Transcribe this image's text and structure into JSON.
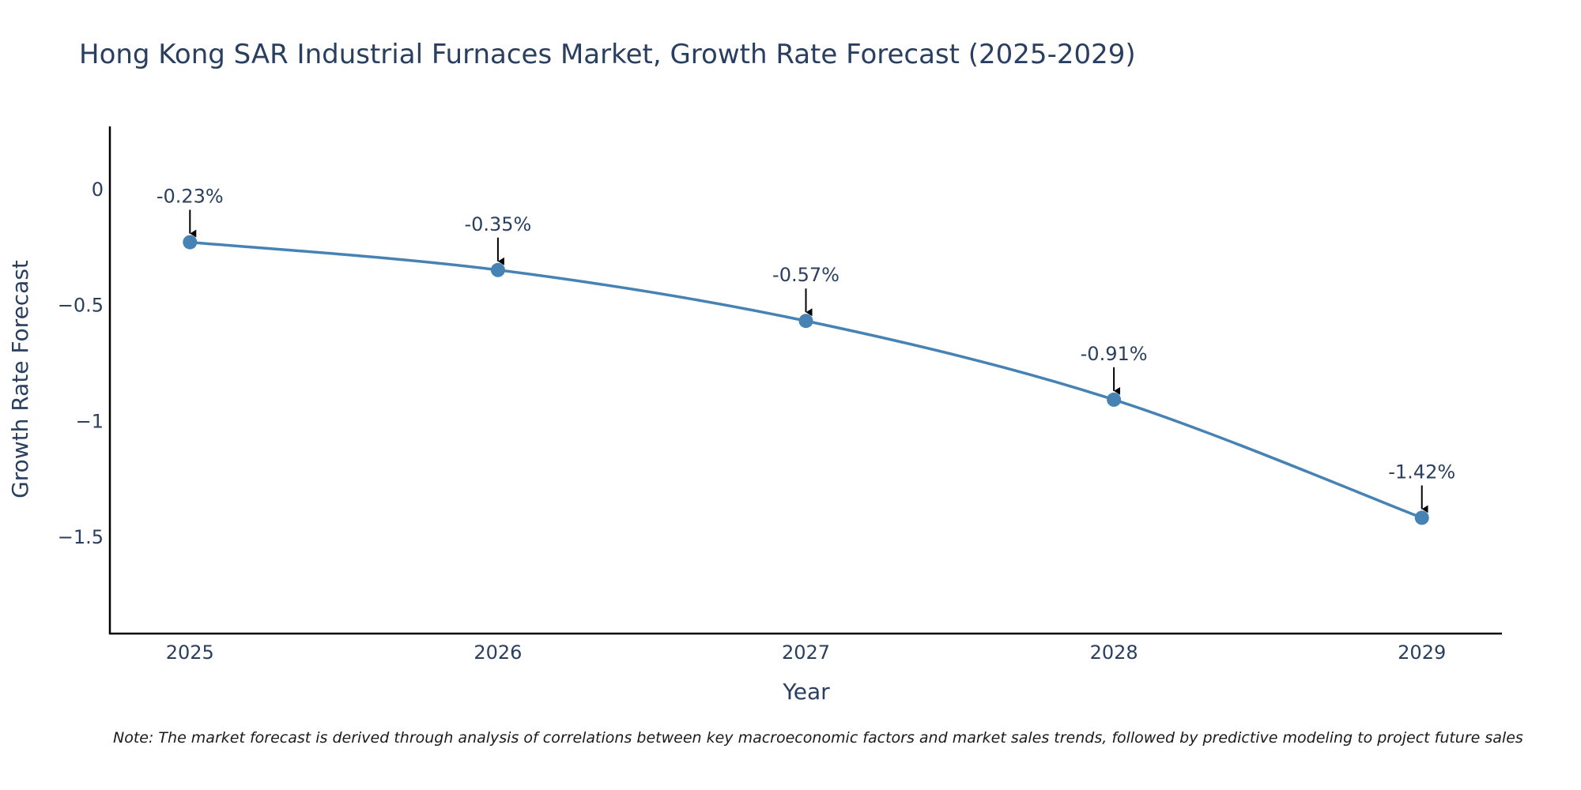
{
  "chart_data": {
    "type": "line",
    "title": "Hong Kong SAR Industrial Furnaces Market, Growth Rate Forecast (2025-2029)",
    "xlabel": "Year",
    "ylabel": "Growth Rate Forecast",
    "x": [
      2025,
      2026,
      2027,
      2028,
      2029
    ],
    "x_tick_labels": [
      "2025",
      "2026",
      "2027",
      "2028",
      "2029"
    ],
    "values": [
      -0.23,
      -0.35,
      -0.57,
      -0.91,
      -1.42
    ],
    "data_labels": [
      "-0.23%",
      "-0.35%",
      "-0.57%",
      "-0.91%",
      "-1.42%"
    ],
    "y_ticks": [
      0,
      -0.5,
      -1,
      -1.5
    ],
    "y_tick_labels": [
      "0",
      "−0.5",
      "−1",
      "−1.5"
    ],
    "ylim": [
      -1.92,
      0.27
    ],
    "xlim": [
      2024.74,
      2029.26
    ],
    "grid": false,
    "line_color": "#4682b4",
    "marker_color": "#4682b4",
    "arrow_color": "#000000",
    "axis_color": "#000000",
    "note": "Note: The market forecast is derived through analysis of correlations between key macroeconomic factors and market sales trends, followed by predictive modeling to project future sales"
  }
}
